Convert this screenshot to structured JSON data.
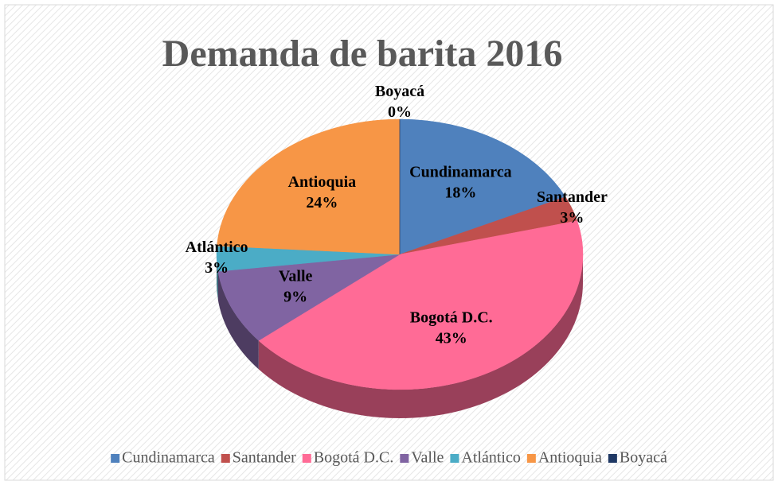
{
  "chart_data": {
    "type": "pie",
    "title": "Demanda de barita 2016",
    "categories": [
      "Cundinamarca",
      "Santander",
      "Bogotá D.C.",
      "Valle",
      "Atlántico",
      "Antioquia",
      "Boyacá"
    ],
    "values": [
      18,
      3,
      43,
      9,
      3,
      24,
      0
    ],
    "value_labels": [
      "18%",
      "3%",
      "43%",
      "9%",
      "3%",
      "24%",
      "0%"
    ],
    "colors": [
      "#4f81bd",
      "#c0504d",
      "#ff6b96",
      "#8064a2",
      "#4bacc6",
      "#f79646",
      "#1f3864"
    ],
    "legend": "bottom"
  }
}
